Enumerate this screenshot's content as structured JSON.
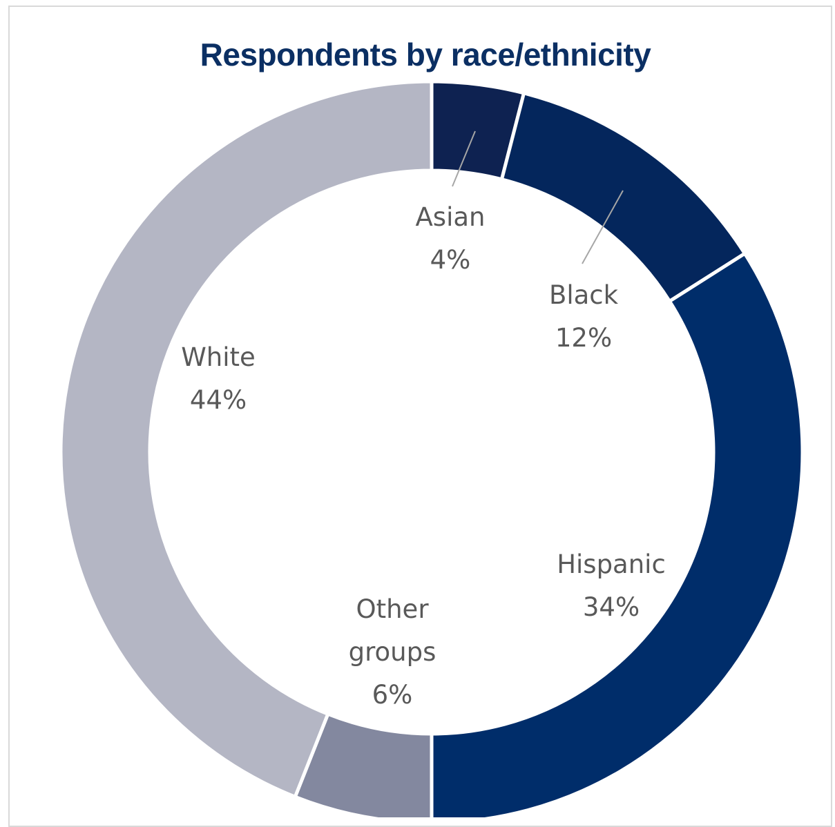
{
  "chart_data": {
    "type": "donut",
    "title": "Respondents by race/ethnicity",
    "slices": [
      {
        "label": "Asian",
        "value": 4,
        "value_label": "4%",
        "color": "#0e2251"
      },
      {
        "label": "Black",
        "value": 12,
        "value_label": "12%",
        "color": "#04265c"
      },
      {
        "label": "Hispanic",
        "value": 34,
        "value_label": "34%",
        "color": "#002d6a"
      },
      {
        "label": "Other groups",
        "value": 6,
        "value_label": "6%",
        "color": "#83889f"
      },
      {
        "label": "White",
        "value": 44,
        "value_label": "44%",
        "color": "#b4b6c4"
      }
    ],
    "leader_line_color": "#a6a6a6",
    "label_color": "#595959"
  }
}
